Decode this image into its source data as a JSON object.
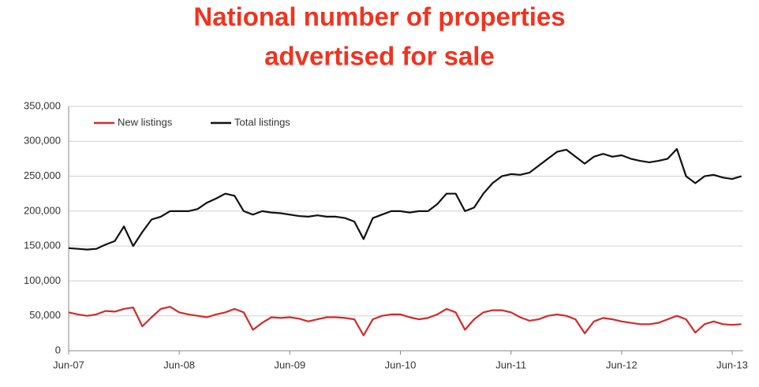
{
  "chart_data": {
    "type": "line",
    "title": [
      "National number of properties",
      "advertised for sale"
    ],
    "categories": [
      "Jun-07",
      null,
      null,
      null,
      null,
      null,
      null,
      null,
      null,
      null,
      null,
      null,
      "Jun-08",
      null,
      null,
      null,
      null,
      null,
      null,
      null,
      null,
      null,
      null,
      null,
      "Jun-09",
      null,
      null,
      null,
      null,
      null,
      null,
      null,
      null,
      null,
      null,
      null,
      "Jun-10",
      null,
      null,
      null,
      null,
      null,
      null,
      null,
      null,
      null,
      null,
      null,
      "Jun-11",
      null,
      null,
      null,
      null,
      null,
      null,
      null,
      null,
      null,
      null,
      null,
      "Jun-12",
      null,
      null,
      null,
      null,
      null,
      null,
      null,
      null,
      null,
      null,
      null,
      "Jun-13",
      null
    ],
    "series": [
      {
        "name": "New listings",
        "color": "#d42a2a",
        "values": [
          55000,
          52000,
          50000,
          52000,
          57000,
          56000,
          60000,
          62000,
          35000,
          48000,
          60000,
          63000,
          55000,
          52000,
          50000,
          48000,
          52000,
          55000,
          60000,
          55000,
          30000,
          40000,
          48000,
          47000,
          48000,
          46000,
          42000,
          45000,
          48000,
          48000,
          47000,
          45000,
          22000,
          45000,
          50000,
          52000,
          52000,
          48000,
          45000,
          47000,
          52000,
          60000,
          55000,
          30000,
          45000,
          55000,
          58000,
          58000,
          55000,
          48000,
          43000,
          45000,
          50000,
          52000,
          50000,
          45000,
          25000,
          42000,
          47000,
          45000,
          42000,
          40000,
          38000,
          38000,
          40000,
          45000,
          50000,
          45000,
          26000,
          38000,
          42000,
          38000,
          37000,
          38000
        ]
      },
      {
        "name": "Total listings",
        "color": "#111111",
        "values": [
          147000,
          146000,
          145000,
          146000,
          152000,
          157000,
          178000,
          150000,
          170000,
          188000,
          192000,
          200000,
          200000,
          200000,
          203000,
          212000,
          218000,
          225000,
          222000,
          200000,
          195000,
          200000,
          198000,
          197000,
          195000,
          193000,
          192000,
          194000,
          192000,
          192000,
          190000,
          185000,
          160000,
          190000,
          195000,
          200000,
          200000,
          198000,
          200000,
          200000,
          210000,
          225000,
          225000,
          200000,
          205000,
          225000,
          240000,
          250000,
          253000,
          252000,
          255000,
          265000,
          275000,
          285000,
          288000,
          278000,
          268000,
          278000,
          282000,
          278000,
          280000,
          275000,
          272000,
          270000,
          272000,
          275000,
          289000,
          250000,
          240000,
          250000,
          252000,
          248000,
          246000,
          250000
        ]
      }
    ],
    "ylim": [
      0,
      350000
    ],
    "yticks": [
      0,
      {
        "value": 50000,
        "label": "50,000"
      },
      {
        "value": 100000,
        "label": "100,000"
      },
      {
        "value": 150000,
        "label": "150,000"
      },
      {
        "value": 200000,
        "label": "200,000"
      },
      {
        "value": 250000,
        "label": "250,000"
      },
      {
        "value": 300000,
        "label": "300,000"
      },
      {
        "value": 350000,
        "label": "350,000"
      }
    ],
    "grid": true,
    "legend": "top-left"
  }
}
